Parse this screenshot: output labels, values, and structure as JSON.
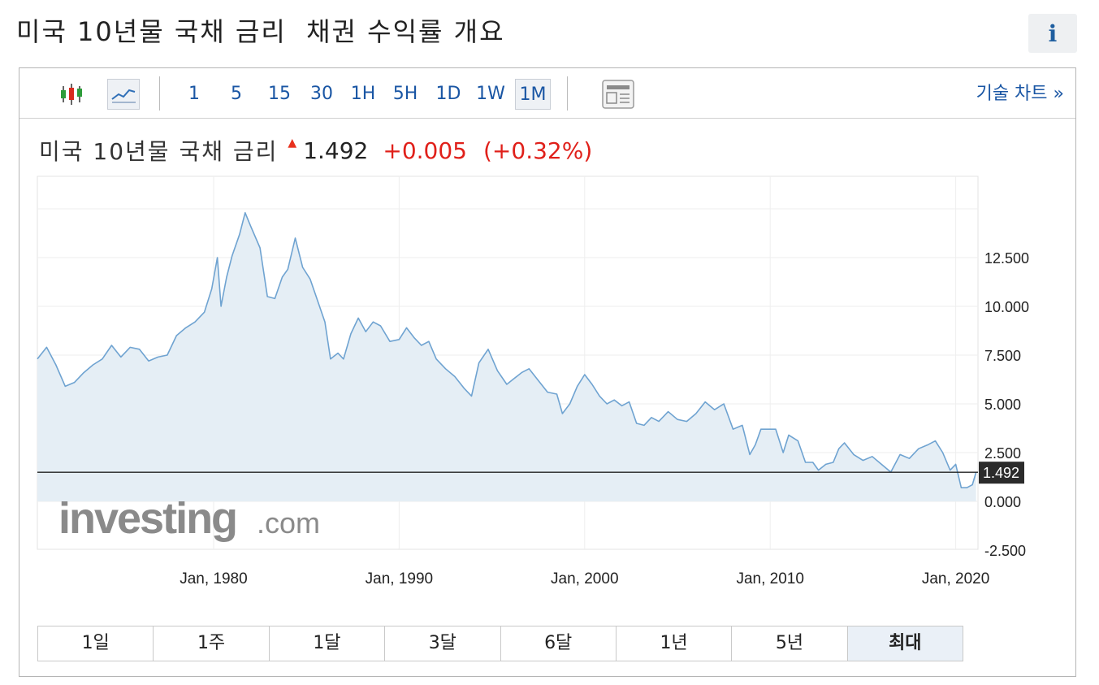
{
  "page": {
    "title": "미국 10년물 국채 금리  채권 수익률 개요",
    "info_icon": "i"
  },
  "toolbar": {
    "chart_types": [
      {
        "name": "candlestick-icon",
        "selected": false
      },
      {
        "name": "line-chart-icon",
        "selected": true
      }
    ],
    "intervals": [
      "1",
      "5",
      "15",
      "30",
      "1H",
      "5H",
      "1D",
      "1W",
      "1M"
    ],
    "active_interval": "1M",
    "settings_icon": "panel-settings-icon",
    "tech_chart_label": "기술 차트 »"
  },
  "quote": {
    "name": "미국 10년물 국채 금리",
    "direction": "up",
    "price": "1.492",
    "change": "+0.005",
    "change_pct": "(+0.32%)"
  },
  "colors": {
    "up": "#e0201a",
    "line": "#6fa3d1",
    "fill": "#e5eef5",
    "link": "#1a56a4"
  },
  "watermark": {
    "main": "investing",
    "suffix": ".com"
  },
  "range_tabs": [
    "1일",
    "1주",
    "1달",
    "3달",
    "6달",
    "1년",
    "5년",
    "최대"
  ],
  "active_range": "최대",
  "chart_data": {
    "type": "area",
    "series": [
      {
        "x": [
          1970.5,
          1971.0,
          1971.5,
          1972.0,
          1972.5,
          1973.0,
          1973.5,
          1974.0,
          1974.5,
          1975.0,
          1975.5,
          1976.0,
          1976.5,
          1977.0,
          1977.5,
          1978.0,
          1978.5,
          1979.0,
          1979.5,
          1979.9,
          1980.2,
          1980.4,
          1980.7,
          1981.0,
          1981.4,
          1981.7,
          1982.0,
          1982.5,
          1982.9,
          1983.3,
          1983.7,
          1984.0,
          1984.4,
          1984.8,
          1985.2,
          1985.6,
          1986.0,
          1986.3,
          1986.7,
          1987.0,
          1987.4,
          1987.8,
          1988.2,
          1988.6,
          1989.0,
          1989.5,
          1990.0,
          1990.4,
          1990.8,
          1991.2,
          1991.6,
          1992.0,
          1992.5,
          1993.0,
          1993.5,
          1993.9,
          1994.3,
          1994.8,
          1995.3,
          1995.8,
          1996.2,
          1996.6,
          1997.0,
          1997.5,
          1998.0,
          1998.5,
          1998.8,
          1999.2,
          1999.6,
          2000.0,
          2000.4,
          2000.8,
          2001.2,
          2001.6,
          2002.0,
          2002.4,
          2002.8,
          2003.2,
          2003.6,
          2004.0,
          2004.5,
          2005.0,
          2005.5,
          2006.0,
          2006.5,
          2007.0,
          2007.5,
          2008.0,
          2008.5,
          2008.9,
          2009.2,
          2009.5,
          2010.0,
          2010.3,
          2010.7,
          2011.0,
          2011.5,
          2011.9,
          2012.3,
          2012.6,
          2013.0,
          2013.4,
          2013.7,
          2014.0,
          2014.5,
          2015.0,
          2015.5,
          2016.0,
          2016.5,
          2017.0,
          2017.5,
          2018.0,
          2018.5,
          2018.9,
          2019.3,
          2019.7,
          2020.0,
          2020.3,
          2020.6,
          2020.9,
          2021.1
        ],
        "y": [
          7.3,
          7.9,
          7.0,
          5.9,
          6.1,
          6.6,
          7.0,
          7.3,
          8.0,
          7.4,
          7.9,
          7.8,
          7.2,
          7.4,
          7.5,
          8.5,
          8.9,
          9.2,
          9.7,
          10.9,
          12.5,
          10.0,
          11.5,
          12.6,
          13.7,
          14.8,
          14.1,
          13.0,
          10.5,
          10.4,
          11.5,
          11.9,
          13.5,
          12.0,
          11.4,
          10.3,
          9.2,
          7.3,
          7.6,
          7.3,
          8.6,
          9.4,
          8.7,
          9.2,
          9.0,
          8.2,
          8.3,
          8.9,
          8.4,
          8.0,
          8.2,
          7.3,
          6.8,
          6.4,
          5.8,
          5.4,
          7.1,
          7.8,
          6.7,
          6.0,
          6.3,
          6.6,
          6.8,
          6.2,
          5.6,
          5.5,
          4.5,
          5.0,
          5.9,
          6.5,
          6.0,
          5.4,
          5.0,
          5.2,
          4.9,
          5.1,
          4.0,
          3.9,
          4.3,
          4.1,
          4.6,
          4.2,
          4.1,
          4.5,
          5.1,
          4.7,
          5.0,
          3.7,
          3.9,
          2.4,
          2.9,
          3.7,
          3.7,
          3.7,
          2.5,
          3.4,
          3.1,
          2.0,
          2.0,
          1.6,
          1.9,
          2.0,
          2.7,
          3.0,
          2.4,
          2.1,
          2.3,
          1.9,
          1.5,
          2.4,
          2.2,
          2.7,
          2.9,
          3.1,
          2.5,
          1.6,
          1.9,
          0.7,
          0.7,
          0.85,
          1.5
        ],
        "last_value": 1.492
      }
    ],
    "xlabel": "",
    "ylabel": "",
    "x_ticks": [
      "Jan, 1980",
      "Jan, 1990",
      "Jan, 2000",
      "Jan, 2010",
      "Jan, 2020"
    ],
    "y_ticks": [
      "12.500",
      "10.000",
      "7.500",
      "5.000",
      "2.500",
      "0.000",
      "-2.500"
    ],
    "xlim": [
      1970.5,
      2021.2
    ],
    "ylim": [
      -2.5,
      16.0
    ],
    "grid": true,
    "current_value_label": "1.492"
  }
}
